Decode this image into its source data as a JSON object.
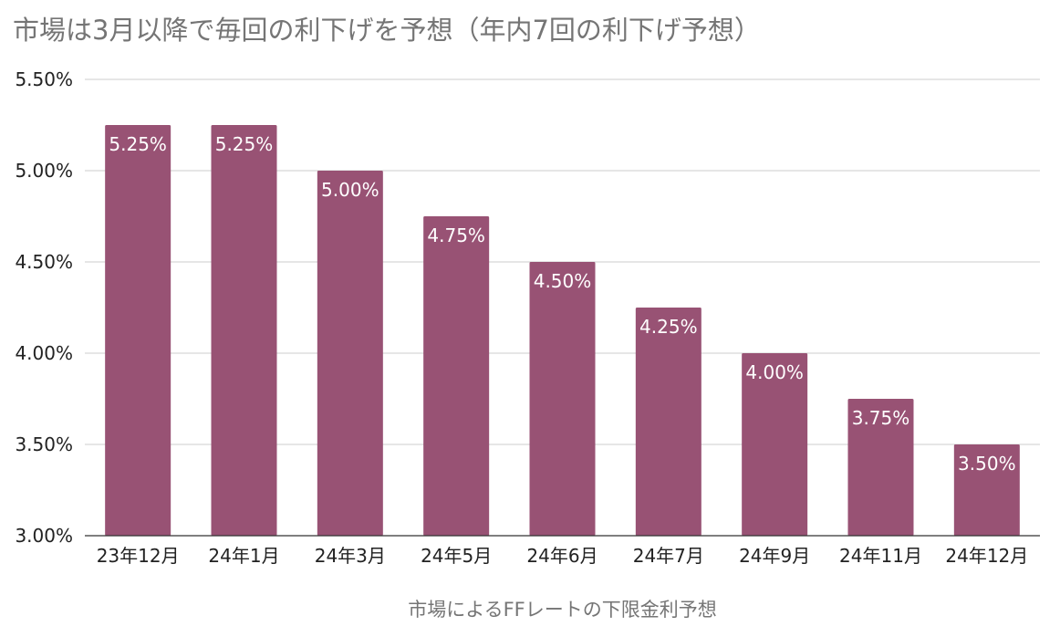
{
  "chart_data": {
    "type": "bar",
    "title": "市場は3月以降で毎回の利下げを予想（年内7回の利下げ予想）",
    "xlabel": "市場によるFFレートの下限金利予想",
    "ylabel": "",
    "categories": [
      "23年12月",
      "24年1月",
      "24年3月",
      "24年5月",
      "24年6月",
      "24年7月",
      "24年9月",
      "24年11月",
      "24年12月"
    ],
    "values": [
      5.25,
      5.25,
      5.0,
      4.75,
      4.5,
      4.25,
      4.0,
      3.75,
      3.5
    ],
    "data_labels": [
      "5.25%",
      "5.25%",
      "5.00%",
      "4.75%",
      "4.50%",
      "4.25%",
      "4.00%",
      "3.75%",
      "3.50%"
    ],
    "ylim": [
      3.0,
      5.5
    ],
    "yticks": [
      3.0,
      3.5,
      4.0,
      4.5,
      5.0,
      5.5
    ],
    "ytick_labels": [
      "3.00%",
      "3.50%",
      "4.00%",
      "4.50%",
      "5.00%",
      "5.50%"
    ],
    "grid": true,
    "legend": "none",
    "colors": {
      "bar": "#985274",
      "data_label": "#ffffff",
      "gridline": "#cccccc",
      "axis": "#333333",
      "title": "#757575"
    }
  }
}
